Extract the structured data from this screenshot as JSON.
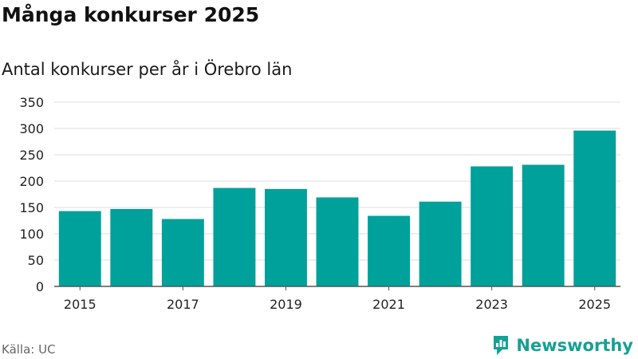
{
  "header": {
    "title": "Många konkurser 2025",
    "subtitle": "Antal konkurser per år i Örebro län"
  },
  "footer": {
    "source": "Källa: UC",
    "brand": "Newsworthy"
  },
  "colors": {
    "bar": "#00a19b",
    "grid": "#dddddd",
    "axis": "#555555",
    "brand": "#16a195"
  },
  "chart_data": {
    "type": "bar",
    "title": "Många konkurser 2025",
    "subtitle": "Antal konkurser per år i Örebro län",
    "xlabel": "",
    "ylabel": "",
    "categories": [
      "2015",
      "2016",
      "2017",
      "2018",
      "2019",
      "2020",
      "2021",
      "2022",
      "2023",
      "2024",
      "2025"
    ],
    "values": [
      143,
      147,
      128,
      187,
      185,
      169,
      134,
      161,
      228,
      231,
      296
    ],
    "x_tick_labels": [
      "2015",
      "2017",
      "2019",
      "2021",
      "2023",
      "2025"
    ],
    "y_ticks": [
      "0",
      "50",
      "100",
      "150",
      "200",
      "250",
      "300",
      "350"
    ],
    "ylim": [
      0,
      350
    ],
    "grid": true,
    "legend": "none"
  }
}
